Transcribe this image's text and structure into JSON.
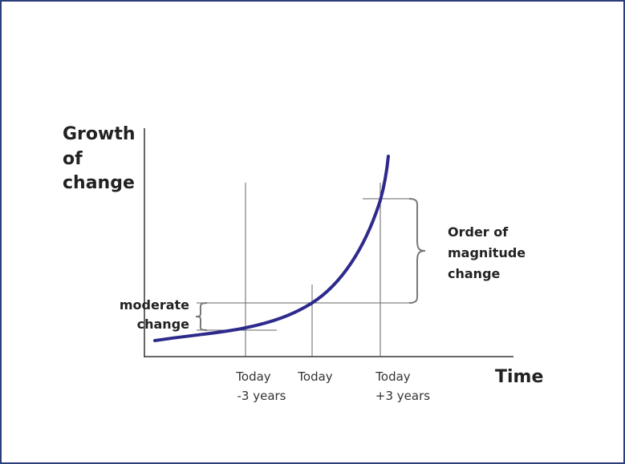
{
  "y_axis_label": [
    "Growth",
    "of",
    "change"
  ],
  "x_axis_label": "Time",
  "time_labels": [
    [
      "Today",
      "-3 years"
    ],
    [
      "Today"
    ],
    [
      "Today",
      "+3 years"
    ]
  ],
  "moderate_label": [
    "moderate",
    "change"
  ],
  "magnitude_label": [
    "Order of",
    "magnitude",
    "change"
  ]
}
